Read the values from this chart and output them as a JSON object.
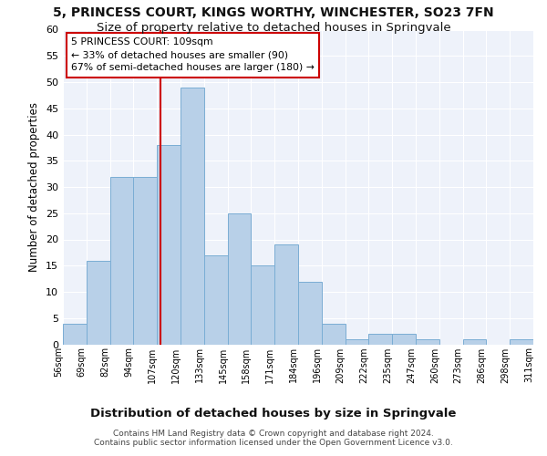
{
  "title": "5, PRINCESS COURT, KINGS WORTHY, WINCHESTER, SO23 7FN",
  "subtitle": "Size of property relative to detached houses in Springvale",
  "xlabel_bottom": "Distribution of detached houses by size in Springvale",
  "ylabel": "Number of detached properties",
  "bar_values": [
    4,
    16,
    32,
    32,
    38,
    49,
    17,
    25,
    15,
    19,
    12,
    4,
    1,
    2,
    2,
    1,
    0,
    1,
    0,
    1
  ],
  "bar_labels": [
    "56sqm",
    "69sqm",
    "82sqm",
    "94sqm",
    "107sqm",
    "120sqm",
    "133sqm",
    "145sqm",
    "158sqm",
    "171sqm",
    "184sqm",
    "196sqm",
    "209sqm",
    "222sqm",
    "235sqm",
    "247sqm",
    "260sqm",
    "273sqm",
    "286sqm",
    "298sqm",
    "311sqm"
  ],
  "bar_color": "#b8d0e8",
  "bar_edge_color": "#7aadd4",
  "vline_color": "#cc0000",
  "annotation_text": "5 PRINCESS COURT: 109sqm\n← 33% of detached houses are smaller (90)\n67% of semi-detached houses are larger (180) →",
  "annotation_box_facecolor": "#ffffff",
  "annotation_box_edgecolor": "#cc0000",
  "ylim": [
    0,
    60
  ],
  "yticks": [
    0,
    5,
    10,
    15,
    20,
    25,
    30,
    35,
    40,
    45,
    50,
    55,
    60
  ],
  "background_color": "#eef2fa",
  "grid_color": "#ffffff",
  "title_fontsize": 10,
  "subtitle_fontsize": 9.5,
  "ylabel_fontsize": 8.5,
  "xlabel_bottom_fontsize": 9.5,
  "footer_fontsize": 6.5,
  "footer": "Contains HM Land Registry data © Crown copyright and database right 2024.\nContains public sector information licensed under the Open Government Licence v3.0."
}
